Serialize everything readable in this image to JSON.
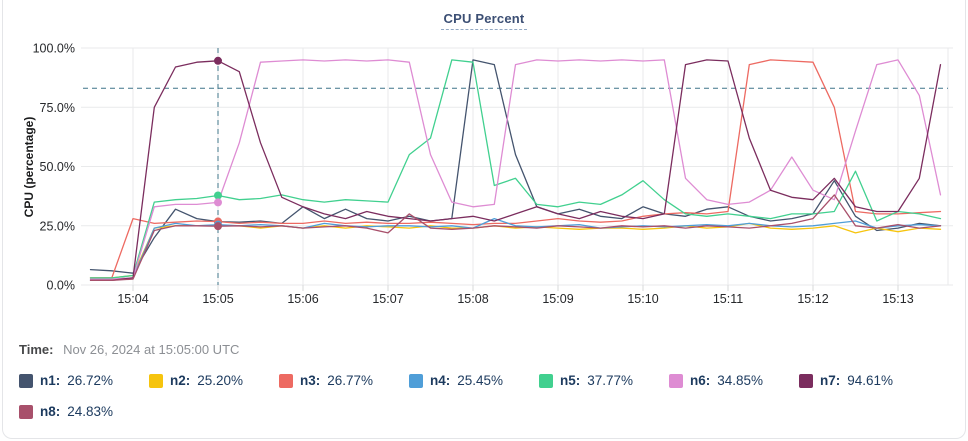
{
  "title": "CPU Percent",
  "time_row": {
    "label": "Time:",
    "value": "Nov 26, 2024 at 15:05:00 UTC"
  },
  "colors": {
    "grid": "#e9eaeb",
    "tick_mark": "#d7d8da",
    "dashed_guides": "#3f7489",
    "title_text": "#3c4f74"
  },
  "legend": [
    {
      "label": "n1:",
      "value": "26.72%",
      "color": "#44546e"
    },
    {
      "label": "n2:",
      "value": "25.20%",
      "color": "#f6c40e"
    },
    {
      "label": "n3:",
      "value": "26.77%",
      "color": "#ed6a62"
    },
    {
      "label": "n4:",
      "value": "25.45%",
      "color": "#4f9ed8"
    },
    {
      "label": "n5:",
      "value": "37.77%",
      "color": "#41d08f"
    },
    {
      "label": "n6:",
      "value": "34.85%",
      "color": "#de8cd3"
    },
    {
      "label": "n7:",
      "value": "94.61%",
      "color": "#7b2d5e"
    },
    {
      "label": "n8:",
      "value": "24.83%",
      "color": "#a8506b"
    }
  ],
  "chart_data": {
    "type": "line",
    "title": "CPU Percent",
    "xlabel": "",
    "ylabel": "CPU (percentage)",
    "ylim": [
      0,
      100
    ],
    "grid": true,
    "legend_position": "bottom",
    "y_tick_values": [
      0,
      25,
      50,
      75,
      100
    ],
    "y_tick_labels": [
      "0.0%",
      "25.0%",
      "50.0%",
      "75.0%",
      "100.0%"
    ],
    "x_tick_labels": [
      "15:04",
      "15:05",
      "15:06",
      "15:07",
      "15:08",
      "15:09",
      "15:10",
      "15:11",
      "15:12",
      "15:13"
    ],
    "sample_start_time": "15:03:30",
    "sample_interval_seconds": 15,
    "threshold_percent": 83,
    "crosshair": {
      "time": "15:05:00",
      "index": 6
    },
    "series": [
      {
        "name": "n1",
        "color": "#44546e",
        "value_at_crosshair": 26.72,
        "values": [
          6.5,
          6,
          5,
          20,
          32,
          28,
          26.72,
          26.5,
          27,
          26,
          33,
          28,
          32,
          28,
          27,
          29,
          27,
          28,
          95,
          93,
          55,
          33,
          30,
          32,
          29,
          28,
          33,
          30,
          29,
          32,
          33,
          29,
          27,
          28,
          30,
          44,
          29,
          23,
          24,
          26,
          25
        ]
      },
      {
        "name": "n2",
        "color": "#f6c40e",
        "value_at_crosshair": 25.2,
        "values": [
          3,
          3,
          4,
          24,
          25,
          25,
          25.2,
          25,
          24,
          25,
          24,
          25,
          24,
          25,
          24.5,
          24,
          25,
          24,
          24,
          25,
          24,
          24.5,
          24,
          23.5,
          24,
          24,
          23.5,
          24,
          25,
          24,
          24.5,
          26,
          24,
          23.5,
          24,
          25,
          22,
          24,
          22.5,
          24,
          23.5
        ]
      },
      {
        "name": "n3",
        "color": "#ed6a62",
        "value_at_crosshair": 26.77,
        "values": [
          3,
          3,
          28,
          26,
          26.5,
          27,
          26.77,
          26,
          26.5,
          26,
          26,
          27,
          26,
          26.5,
          26,
          26,
          26.5,
          26,
          25.5,
          26,
          26,
          27,
          28,
          27,
          26.5,
          27,
          29,
          30,
          30.5,
          30,
          31,
          93,
          95,
          94.5,
          94,
          75,
          31,
          30,
          30,
          30.5,
          31
        ]
      },
      {
        "name": "n4",
        "color": "#4f9ed8",
        "value_at_crosshair": 25.45,
        "values": [
          2.5,
          2.5,
          3,
          24,
          26,
          25,
          25.45,
          25,
          25.5,
          25,
          24,
          26,
          25,
          24.5,
          25,
          25,
          24.5,
          25,
          24,
          28,
          25,
          24.5,
          25,
          25.5,
          24,
          24.5,
          25,
          24.5,
          25,
          25.5,
          25,
          26,
          25,
          24.5,
          25,
          26,
          27,
          24,
          25,
          25.5,
          25
        ]
      },
      {
        "name": "n5",
        "color": "#41d08f",
        "value_at_crosshair": 37.77,
        "values": [
          3,
          3,
          4,
          35,
          36,
          36.5,
          37.77,
          36,
          36.5,
          38,
          36,
          35,
          36,
          35.5,
          35,
          55,
          62,
          95,
          94,
          42,
          45,
          34,
          33,
          35,
          34,
          38,
          44,
          36,
          30,
          29,
          30,
          29,
          28,
          30,
          30,
          31,
          48,
          27,
          31,
          30,
          28
        ]
      },
      {
        "name": "n6",
        "color": "#de8cd3",
        "value_at_crosshair": 34.85,
        "values": [
          2.5,
          2.5,
          3,
          33,
          34,
          34,
          34.85,
          60,
          94,
          94.5,
          95,
          94.5,
          95,
          94.5,
          95,
          94,
          55,
          35,
          33,
          34,
          93,
          95,
          94.5,
          95,
          94.5,
          95,
          94.5,
          95,
          45,
          36,
          34,
          35,
          40,
          54,
          40,
          36,
          65,
          93,
          95,
          80,
          38
        ]
      },
      {
        "name": "n7",
        "color": "#7b2d5e",
        "value_at_crosshair": 94.61,
        "values": [
          2,
          2,
          3,
          75,
          92,
          94,
          94.61,
          90,
          60,
          37,
          33,
          30,
          28,
          31,
          29,
          28,
          27,
          28,
          29,
          27,
          30,
          33,
          30,
          28,
          31,
          29,
          28,
          30,
          93,
          95,
          94.5,
          62,
          40,
          37,
          36,
          45,
          33,
          31,
          31,
          45,
          93
        ]
      },
      {
        "name": "n8",
        "color": "#a8506b",
        "value_at_crosshair": 24.83,
        "values": [
          2,
          2,
          2.5,
          23,
          25,
          25,
          24.83,
          25,
          24.5,
          25,
          24,
          24.5,
          25,
          24,
          22,
          30,
          24,
          23.5,
          24,
          25,
          24.5,
          24,
          25,
          24.5,
          24,
          25,
          24.5,
          25,
          24,
          25,
          24.5,
          24,
          25,
          26,
          28,
          38,
          25,
          24,
          25.5,
          24,
          25
        ]
      }
    ]
  }
}
